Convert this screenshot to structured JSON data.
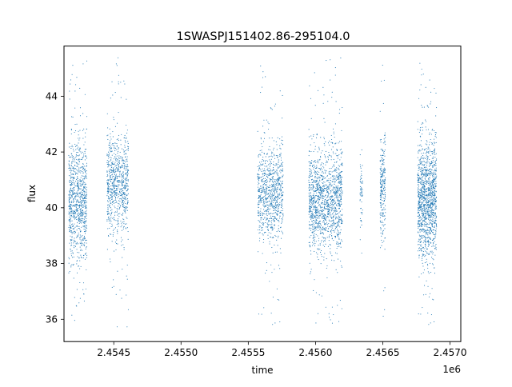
{
  "chart_data": {
    "type": "scatter",
    "title": "1SWASPJ151402.86-295104.0",
    "xlabel": "time",
    "ylabel": "flux",
    "x_offset_label": "1e6",
    "xlim": [
      2454130,
      2457080
    ],
    "ylim": [
      35.2,
      45.8
    ],
    "x_ticks": [
      2454500,
      2455000,
      2455500,
      2456000,
      2456500,
      2457000
    ],
    "x_tick_labels": [
      "2.4545",
      "2.4550",
      "2.4555",
      "2.4560",
      "2.4565",
      "2.4570"
    ],
    "y_ticks": [
      36,
      38,
      40,
      42,
      44
    ],
    "y_tick_labels": [
      "36",
      "38",
      "40",
      "42",
      "44"
    ],
    "grid": false,
    "legend": "none",
    "color": "#1f77b4",
    "series": [
      {
        "segments": [
          {
            "x_start": 2454165,
            "x_end": 2454300,
            "center": 40.2,
            "spread": 1.1,
            "min": 35.8,
            "max": 45.4,
            "density": 900
          },
          {
            "x_start": 2454450,
            "x_end": 2454610,
            "center": 40.8,
            "spread": 0.9,
            "min": 35.7,
            "max": 45.4,
            "density": 800
          },
          {
            "x_start": 2455570,
            "x_end": 2455760,
            "center": 40.5,
            "spread": 0.8,
            "min": 35.7,
            "max": 45.3,
            "density": 900
          },
          {
            "x_start": 2455950,
            "x_end": 2456200,
            "center": 40.3,
            "spread": 0.9,
            "min": 35.7,
            "max": 45.4,
            "density": 1400
          },
          {
            "x_start": 2456330,
            "x_end": 2456350,
            "center": 40.6,
            "spread": 0.6,
            "min": 38.3,
            "max": 42.2,
            "density": 60
          },
          {
            "x_start": 2456480,
            "x_end": 2456520,
            "center": 40.6,
            "spread": 1.0,
            "min": 36.0,
            "max": 45.4,
            "density": 250
          },
          {
            "x_start": 2456760,
            "x_end": 2456900,
            "center": 40.3,
            "spread": 1.0,
            "min": 35.7,
            "max": 45.4,
            "density": 1300
          }
        ]
      }
    ]
  }
}
